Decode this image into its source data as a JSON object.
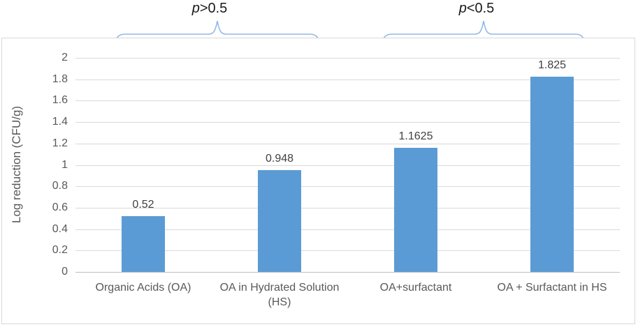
{
  "chart_data": {
    "type": "bar",
    "categories": [
      "Organic Acids (OA)",
      "OA in Hydrated Solution (HS)",
      "OA+surfactant",
      "OA + Surfactant in HS"
    ],
    "values": [
      0.52,
      0.948,
      1.1625,
      1.825
    ],
    "value_labels": [
      "0.52",
      "0.948",
      "1.1625",
      "1.825"
    ],
    "title": "",
    "xlabel": "",
    "ylabel": "Log reduction (CFU/g)",
    "ylim": [
      0,
      2
    ],
    "yticks": [
      "0",
      "0.2",
      "0.4",
      "0.6",
      "0.8",
      "1",
      "1.2",
      "1.4",
      "1.6",
      "1.8",
      "2"
    ],
    "grid": true,
    "legend": false,
    "bar_color": "#5B9BD5",
    "gridline_color": "#D9D9D9",
    "axis_color": "#BFBFBF",
    "tick_label_color": "#595959",
    "data_label_color": "#404040"
  },
  "annotations": {
    "left": {
      "label": "p>0.5",
      "spans": "first two categories"
    },
    "right": {
      "label": "p<0.5",
      "spans": "last two categories"
    },
    "bracket_color": "#92B9E4",
    "text_color": "#1a1a1a"
  }
}
